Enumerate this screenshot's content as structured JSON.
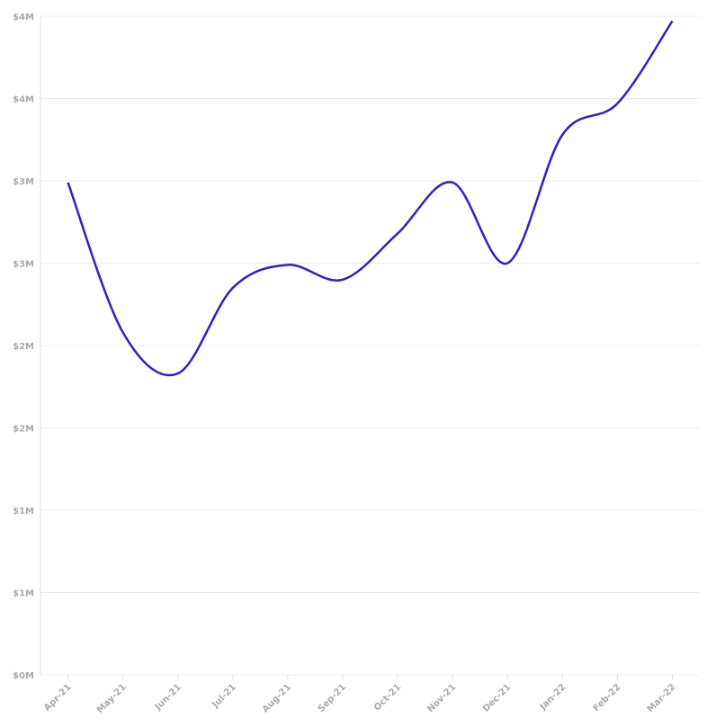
{
  "chart_data": {
    "type": "line",
    "categories": [
      "Apr-21",
      "May-21",
      "Jun-21",
      "Jul-21",
      "Aug-21",
      "Sep-21",
      "Oct-21",
      "Nov-21",
      "Dec-21",
      "Jan-22",
      "Feb-22",
      "Mar-22"
    ],
    "series": [
      {
        "color": "#2e1fcc",
        "values": [
          2990000,
          2080000,
          1830000,
          2350000,
          2490000,
          2400000,
          2680000,
          2990000,
          2500000,
          3280000,
          3470000,
          3970000
        ]
      }
    ],
    "ylim": [
      0,
      4000000
    ],
    "yticks": [
      {
        "value": 0,
        "label": "$0M"
      },
      {
        "value": 500000,
        "label": "$1M"
      },
      {
        "value": 1000000,
        "label": "$1M"
      },
      {
        "value": 1500000,
        "label": "$2M"
      },
      {
        "value": 2000000,
        "label": "$2M"
      },
      {
        "value": 2500000,
        "label": "$3M"
      },
      {
        "value": 3000000,
        "label": "$3M"
      },
      {
        "value": 3500000,
        "label": "$4M"
      },
      {
        "value": 4000000,
        "label": "$4M"
      }
    ],
    "grid": true
  }
}
